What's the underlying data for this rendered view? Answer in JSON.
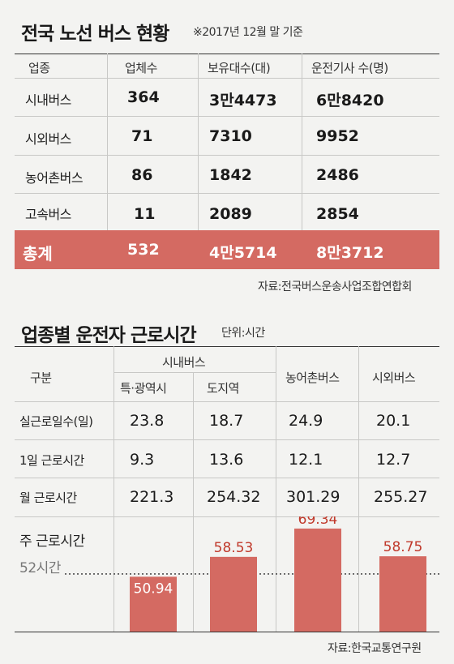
{
  "table1": {
    "title": "전국 노선 버스 현황",
    "note": "※2017년 12월 말 기준",
    "headers": [
      "업종",
      "업체수",
      "보유대수(대)",
      "운전기사 수(명)"
    ],
    "rows": [
      [
        "시내버스",
        "364",
        "3만4473",
        "6만8420"
      ],
      [
        "시외버스",
        "71",
        "7310",
        "9952"
      ],
      [
        "농어촌버스",
        "86",
        "1842",
        "2486"
      ],
      [
        "고속버스",
        "11",
        "2089",
        "2854"
      ]
    ],
    "total": [
      "총계",
      "532",
      "4만5714",
      "8만3712"
    ],
    "source": "자료:전국버스운송사업조합연합회"
  },
  "table2": {
    "title": "업종별 운전자 근로시간",
    "unit": "단위:시간",
    "header_gubun": "구분",
    "header_city": "시내버스",
    "header_metro": "특·광역시",
    "header_province": "도지역",
    "header_rural": "농어촌버스",
    "header_intercity": "시외버스",
    "rows": [
      [
        "실근로일수(일)",
        "23.8",
        "18.7",
        "24.9",
        "20.1"
      ],
      [
        "1일 근로시간",
        "9.3",
        "13.6",
        "12.1",
        "12.7"
      ],
      [
        "월 근로시간",
        "221.3",
        "254.32",
        "301.29",
        "255.27"
      ]
    ],
    "weekly_label": "주 근로시간",
    "threshold_label": "52시간",
    "source": "자료:한국교통연구원"
  },
  "chart_data": {
    "type": "bar",
    "title": "주 근로시간",
    "categories": [
      "특·광역시",
      "도지역",
      "농어촌버스",
      "시외버스"
    ],
    "values": [
      50.94,
      58.53,
      69.34,
      58.75
    ],
    "value_labels": [
      "50.94",
      "58.53",
      "69.34",
      "58.75"
    ],
    "reference_line": 52,
    "bar_color": "#d46a62",
    "label_color_below": "#ffffff",
    "label_color_above": "#c0392b"
  },
  "colors": {
    "total_row_bg": "#d46a62",
    "background": "#f3f3f1"
  }
}
